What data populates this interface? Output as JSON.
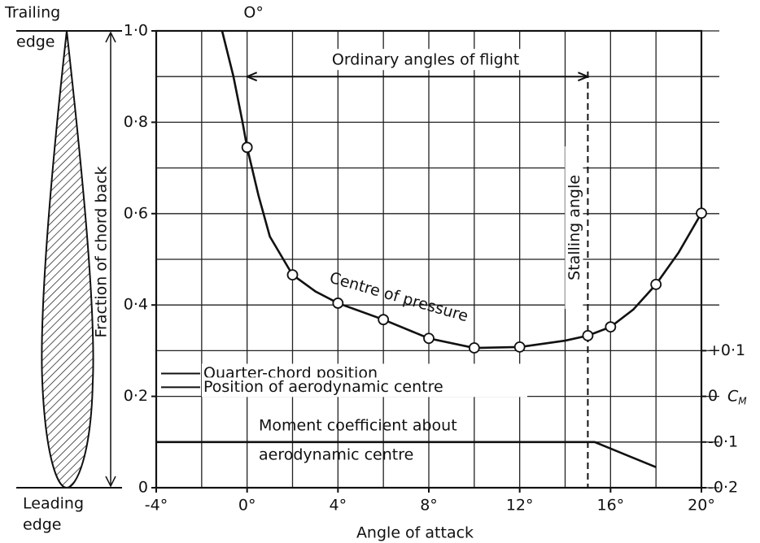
{
  "chart_data": {
    "type": "line",
    "x_label": "Angle of attack",
    "y_label": "Fraction of chord back",
    "top_label": "O°",
    "xlim": [
      -4,
      20
    ],
    "xticks": [
      {
        "value": -4,
        "label": "-4°"
      },
      {
        "value": 0,
        "label": "0°"
      },
      {
        "value": 4,
        "label": "4°"
      },
      {
        "value": 8,
        "label": "8°"
      },
      {
        "value": 12,
        "label": "12°"
      },
      {
        "value": 16,
        "label": "16°"
      },
      {
        "value": 20,
        "label": "20°"
      }
    ],
    "ylim": [
      0,
      1
    ],
    "yticks": [
      {
        "value": 0,
        "label": "0"
      },
      {
        "value": 0.2,
        "label": "0·2"
      },
      {
        "value": 0.4,
        "label": "0·4"
      },
      {
        "value": 0.6,
        "label": "0·6"
      },
      {
        "value": 0.8,
        "label": "0·8"
      },
      {
        "value": 1,
        "label": "1·0"
      }
    ],
    "y2lim": [
      -0.2,
      0.8
    ],
    "y2ticks": [
      {
        "value": -0.2,
        "label": "-0·2"
      },
      {
        "value": -0.1,
        "label": "-0·1"
      },
      {
        "value": 0,
        "label": "0"
      },
      {
        "value": 0.1,
        "label": "+0·1"
      }
    ],
    "y2_label": {
      "symbol": "C",
      "subscript": "M"
    },
    "grid": true,
    "x_grid_step": 2,
    "y_grid_step": 0.1,
    "series": [
      {
        "name": "Centre of pressure",
        "color": "#111111",
        "x": [
          -1.1,
          -0.6,
          -0.2,
          0,
          0.5,
          1,
          2,
          3,
          4,
          6,
          8,
          10,
          12,
          14,
          15,
          16,
          17,
          18,
          19,
          20
        ],
        "values": [
          1.0,
          0.9,
          0.8,
          0.745,
          0.64,
          0.55,
          0.466,
          0.43,
          0.404,
          0.368,
          0.327,
          0.306,
          0.308,
          0.322,
          0.333,
          0.352,
          0.39,
          0.445,
          0.515,
          0.601
        ]
      },
      {
        "color": "#111111",
        "marker": "circle",
        "x": [
          0,
          2,
          4,
          6,
          8,
          10,
          12,
          15,
          16,
          18,
          20
        ],
        "values": [
          0.745,
          0.466,
          0.404,
          0.368,
          0.327,
          0.306,
          0.308,
          0.333,
          0.352,
          0.445,
          0.601
        ]
      },
      {
        "name_lines": [
          "Moment coefficient about",
          "aerodynamic centre"
        ],
        "color": "#111111",
        "axis": "y2",
        "x": [
          -4,
          15.3,
          18
        ],
        "values": [
          -0.1,
          -0.1,
          -0.155
        ]
      }
    ],
    "flight_range": {
      "label": "Ordinary angles of flight",
      "from": 0,
      "to": 15,
      "y": 0.9
    },
    "stall": {
      "label": "Stalling angle",
      "x": 15
    },
    "reference_lines": [
      {
        "label": "Quarter-chord position",
        "y": 0.25
      },
      {
        "label": "Position of aerodynamic centre",
        "y": 0.22
      }
    ],
    "airfoil": {
      "top_label": [
        "Trailing",
        "edge"
      ],
      "bottom_label": [
        "Leading",
        "edge"
      ]
    }
  }
}
